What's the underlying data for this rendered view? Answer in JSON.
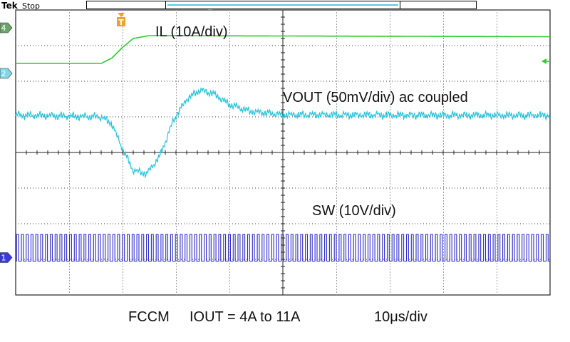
{
  "header": {
    "brand": "Tek",
    "state": "Stop"
  },
  "markers": {
    "trigger": "T"
  },
  "channels": [
    {
      "id": "4",
      "color": "#44aa44"
    },
    {
      "id": "2",
      "color": "#35c6d8"
    },
    {
      "id": "1",
      "color": "#2a2ac8"
    }
  ],
  "caption": {
    "mode": "FCCM",
    "iout": "IOUT = 4A to 11A",
    "timebase": "10μs/div"
  },
  "chart_data": {
    "type": "line",
    "grid": true,
    "divisions": {
      "x": 10,
      "y": 8
    },
    "x_units": "divisions",
    "y_units": "divisions",
    "series": [
      {
        "name": "IL (10A/div)",
        "color": "#2ecc2e",
        "points": [
          [
            0,
            6.5
          ],
          [
            1.6,
            6.5
          ],
          [
            1.8,
            6.65
          ],
          [
            2.0,
            6.95
          ],
          [
            2.2,
            7.2
          ],
          [
            2.5,
            7.28
          ],
          [
            10,
            7.25
          ]
        ]
      },
      {
        "name": "VOUT (50mV/div) ac coupled",
        "color": "#22c4dc",
        "points": [
          [
            0,
            5.05
          ],
          [
            1.6,
            5.0
          ],
          [
            1.8,
            4.8
          ],
          [
            2.0,
            4.1
          ],
          [
            2.2,
            3.5
          ],
          [
            2.45,
            3.4
          ],
          [
            2.7,
            3.9
          ],
          [
            2.95,
            4.9
          ],
          [
            3.2,
            5.5
          ],
          [
            3.45,
            5.75
          ],
          [
            3.7,
            5.65
          ],
          [
            4.0,
            5.35
          ],
          [
            4.4,
            5.15
          ],
          [
            5,
            5.06
          ],
          [
            10,
            5.04
          ]
        ]
      },
      {
        "name": "SW (10V/div)",
        "color": "#2a2ac8",
        "low": 0.95,
        "high": 1.7,
        "cycles": 111
      }
    ]
  }
}
